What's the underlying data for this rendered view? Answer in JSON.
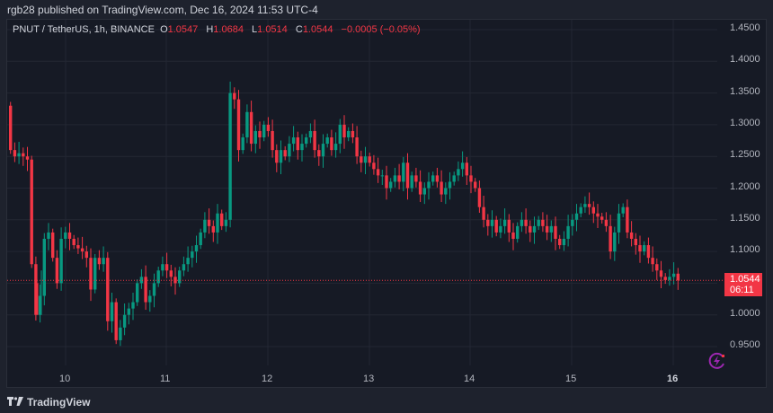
{
  "header": {
    "published": "rgb28 published on TradingView.com, Dec 16, 2024 11:53 UTC-4"
  },
  "legend": {
    "symbol": "PNUT / TetherUS, 1h, BINANCE",
    "o_label": "O",
    "o_value": "1.0547",
    "h_label": "H",
    "h_value": "1.0684",
    "l_label": "L",
    "l_value": "1.0514",
    "c_label": "C",
    "c_value": "1.0544",
    "change": "−0.0005 (−0.05%)"
  },
  "last_price": {
    "price": "1.0544",
    "countdown": "06:11",
    "color": "#f23645"
  },
  "footer": {
    "brand": "TradingView",
    "brand_icon": "tradingview-logo-icon"
  },
  "colors": {
    "up": "#089981",
    "down": "#f23645",
    "background": "#161a25",
    "frame": "#1e222d",
    "grid": "#232733",
    "alert_icon": "#9c27b0"
  },
  "chart_data": {
    "type": "candlestick",
    "title": "PNUT / TetherUS, 1h, BINANCE",
    "xlabel": "",
    "ylabel": "",
    "ylim": [
      0.93,
      1.46
    ],
    "grid": true,
    "y_ticks": [
      "1.4500",
      "1.4000",
      "1.3500",
      "1.3000",
      "1.2500",
      "1.2000",
      "1.1500",
      "1.1000",
      "1.0000",
      "0.9500"
    ],
    "x_ticks": [
      "10",
      "11",
      "12",
      "13",
      "14",
      "15",
      "16"
    ],
    "last_price": 1.0544,
    "ohlc_header": {
      "open": 1.0547,
      "high": 1.0684,
      "low": 1.0514,
      "close": 1.0544,
      "change": -0.0005,
      "change_pct": -0.05
    },
    "closes": [
      1.26,
      1.25,
      1.255,
      1.25,
      1.245,
      1.08,
      1.0,
      1.03,
      1.12,
      1.13,
      1.09,
      1.05,
      1.12,
      1.13,
      1.12,
      1.11,
      1.105,
      1.1,
      1.09,
      1.04,
      1.09,
      1.08,
      1.09,
      0.99,
      1.02,
      0.96,
      0.98,
      1.0,
      1.01,
      1.02,
      1.05,
      1.06,
      1.02,
      1.03,
      1.05,
      1.07,
      1.08,
      1.07,
      1.06,
      1.05,
      1.07,
      1.08,
      1.09,
      1.1,
      1.11,
      1.13,
      1.15,
      1.14,
      1.13,
      1.16,
      1.14,
      1.15,
      1.35,
      1.34,
      1.26,
      1.28,
      1.32,
      1.27,
      1.29,
      1.28,
      1.3,
      1.29,
      1.26,
      1.24,
      1.26,
      1.25,
      1.27,
      1.28,
      1.26,
      1.27,
      1.28,
      1.29,
      1.26,
      1.25,
      1.27,
      1.28,
      1.26,
      1.27,
      1.3,
      1.28,
      1.29,
      1.28,
      1.25,
      1.24,
      1.25,
      1.24,
      1.23,
      1.22,
      1.22,
      1.2,
      1.21,
      1.22,
      1.21,
      1.24,
      1.2,
      1.22,
      1.21,
      1.19,
      1.2,
      1.21,
      1.22,
      1.21,
      1.19,
      1.2,
      1.21,
      1.22,
      1.23,
      1.24,
      1.22,
      1.21,
      1.2,
      1.17,
      1.15,
      1.14,
      1.15,
      1.13,
      1.14,
      1.15,
      1.13,
      1.12,
      1.14,
      1.15,
      1.14,
      1.13,
      1.14,
      1.15,
      1.14,
      1.13,
      1.14,
      1.12,
      1.11,
      1.12,
      1.14,
      1.15,
      1.16,
      1.17,
      1.175,
      1.17,
      1.16,
      1.155,
      1.15,
      1.14,
      1.1,
      1.13,
      1.16,
      1.17,
      1.13,
      1.12,
      1.11,
      1.1,
      1.11,
      1.09,
      1.08,
      1.07,
      1.06,
      1.055,
      1.06,
      1.065,
      1.0544
    ]
  }
}
